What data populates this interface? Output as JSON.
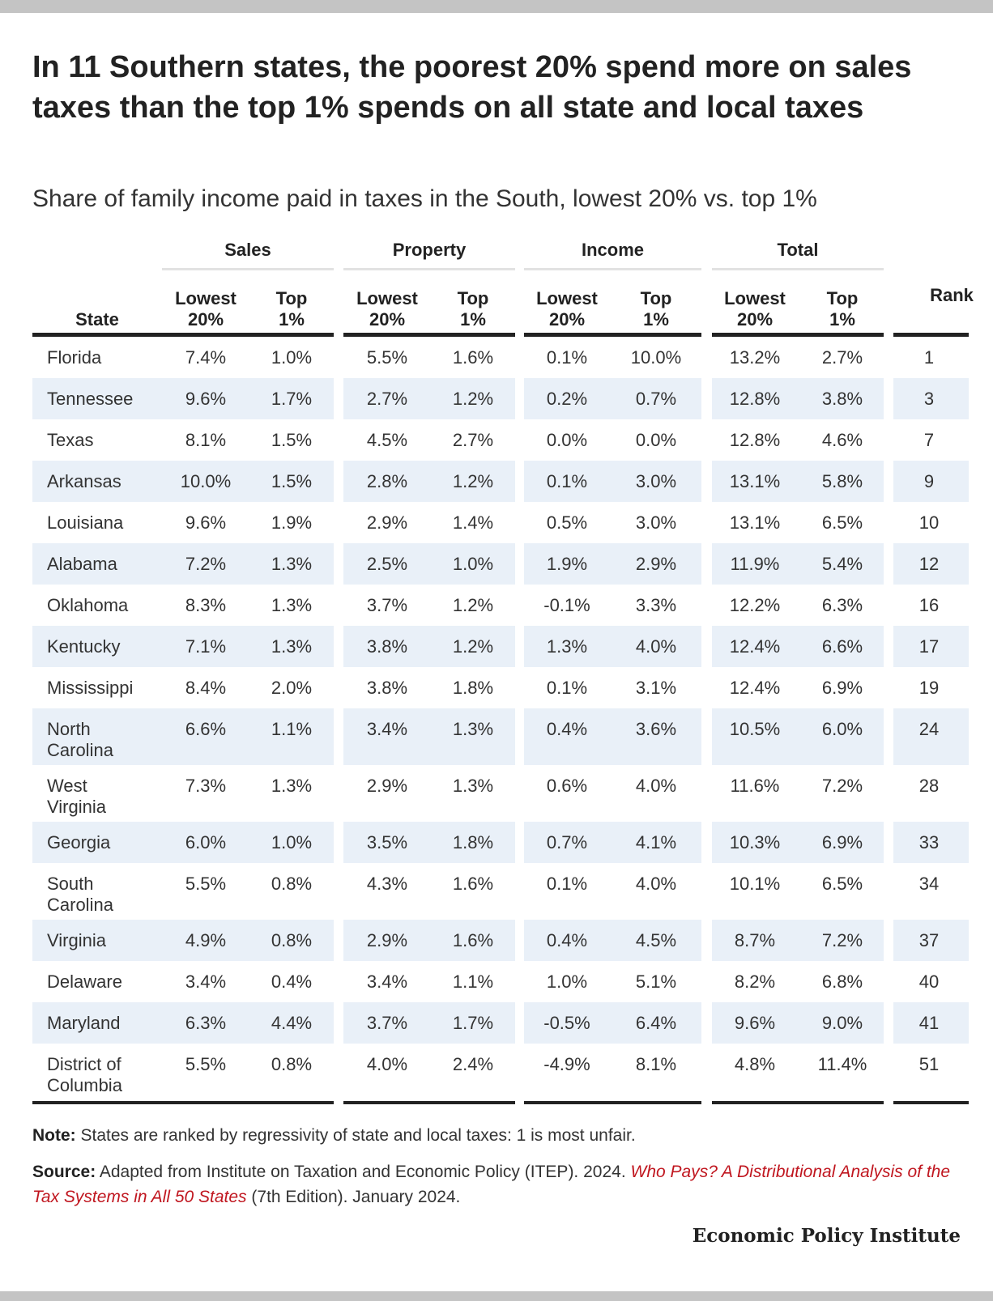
{
  "title": "In 11 Southern states, the poorest 20% spend more on sales taxes than the top 1% spends on all state and local taxes",
  "subtitle": "Share of family income paid in taxes in the South, lowest 20% vs. top 1%",
  "chart_data": {
    "type": "table",
    "column_groups": [
      "Sales",
      "Property",
      "Income",
      "Total"
    ],
    "subcolumns": [
      "Lowest\n20%",
      "Top\n1%"
    ],
    "state_header": "State",
    "rank_header": "Rank",
    "rows": [
      {
        "state": "Florida",
        "values": [
          "7.4%",
          "1.0%",
          "5.5%",
          "1.6%",
          "0.1%",
          "10.0%",
          "13.2%",
          "2.7%"
        ],
        "rank": "1"
      },
      {
        "state": "Tennessee",
        "values": [
          "9.6%",
          "1.7%",
          "2.7%",
          "1.2%",
          "0.2%",
          "0.7%",
          "12.8%",
          "3.8%"
        ],
        "rank": "3"
      },
      {
        "state": "Texas",
        "values": [
          "8.1%",
          "1.5%",
          "4.5%",
          "2.7%",
          "0.0%",
          "0.0%",
          "12.8%",
          "4.6%"
        ],
        "rank": "7"
      },
      {
        "state": "Arkansas",
        "values": [
          "10.0%",
          "1.5%",
          "2.8%",
          "1.2%",
          "0.1%",
          "3.0%",
          "13.1%",
          "5.8%"
        ],
        "rank": "9"
      },
      {
        "state": "Louisiana",
        "values": [
          "9.6%",
          "1.9%",
          "2.9%",
          "1.4%",
          "0.5%",
          "3.0%",
          "13.1%",
          "6.5%"
        ],
        "rank": "10"
      },
      {
        "state": "Alabama",
        "values": [
          "7.2%",
          "1.3%",
          "2.5%",
          "1.0%",
          "1.9%",
          "2.9%",
          "11.9%",
          "5.4%"
        ],
        "rank": "12"
      },
      {
        "state": "Oklahoma",
        "values": [
          "8.3%",
          "1.3%",
          "3.7%",
          "1.2%",
          "-0.1%",
          "3.3%",
          "12.2%",
          "6.3%"
        ],
        "rank": "16"
      },
      {
        "state": "Kentucky",
        "values": [
          "7.1%",
          "1.3%",
          "3.8%",
          "1.2%",
          "1.3%",
          "4.0%",
          "12.4%",
          "6.6%"
        ],
        "rank": "17"
      },
      {
        "state": "Mississippi",
        "values": [
          "8.4%",
          "2.0%",
          "3.8%",
          "1.8%",
          "0.1%",
          "3.1%",
          "12.4%",
          "6.9%"
        ],
        "rank": "19"
      },
      {
        "state": "North\nCarolina",
        "values": [
          "6.6%",
          "1.1%",
          "3.4%",
          "1.3%",
          "0.4%",
          "3.6%",
          "10.5%",
          "6.0%"
        ],
        "rank": "24"
      },
      {
        "state": "West\nVirginia",
        "values": [
          "7.3%",
          "1.3%",
          "2.9%",
          "1.3%",
          "0.6%",
          "4.0%",
          "11.6%",
          "7.2%"
        ],
        "rank": "28"
      },
      {
        "state": "Georgia",
        "values": [
          "6.0%",
          "1.0%",
          "3.5%",
          "1.8%",
          "0.7%",
          "4.1%",
          "10.3%",
          "6.9%"
        ],
        "rank": "33"
      },
      {
        "state": "South\nCarolina",
        "values": [
          "5.5%",
          "0.8%",
          "4.3%",
          "1.6%",
          "0.1%",
          "4.0%",
          "10.1%",
          "6.5%"
        ],
        "rank": "34"
      },
      {
        "state": "Virginia",
        "values": [
          "4.9%",
          "0.8%",
          "2.9%",
          "1.6%",
          "0.4%",
          "4.5%",
          "8.7%",
          "7.2%"
        ],
        "rank": "37"
      },
      {
        "state": "Delaware",
        "values": [
          "3.4%",
          "0.4%",
          "3.4%",
          "1.1%",
          "1.0%",
          "5.1%",
          "8.2%",
          "6.8%"
        ],
        "rank": "40"
      },
      {
        "state": "Maryland",
        "values": [
          "6.3%",
          "4.4%",
          "3.7%",
          "1.7%",
          "-0.5%",
          "6.4%",
          "9.6%",
          "9.0%"
        ],
        "rank": "41"
      },
      {
        "state": "District of\nColumbia",
        "values": [
          "5.5%",
          "0.8%",
          "4.0%",
          "2.4%",
          "-4.9%",
          "8.1%",
          "4.8%",
          "11.4%"
        ],
        "rank": "51"
      }
    ]
  },
  "note": {
    "label": "Note:",
    "text": " States are ranked by regressivity of state and local taxes: 1 is most unfair."
  },
  "source": {
    "label": "Source:",
    "text_before": " Adapted from Institute on Taxation and Economic Policy (ITEP). 2024. ",
    "title": "Who Pays? A Distributional Analysis of the Tax Systems in All 50 States",
    "text_after": " (7th Edition). January 2024."
  },
  "logo": "Economic Policy Institute",
  "colors": {
    "band": "#e9f0f8",
    "rule": "#222222",
    "link": "#c0161f",
    "bar": "#c4c4c4"
  }
}
